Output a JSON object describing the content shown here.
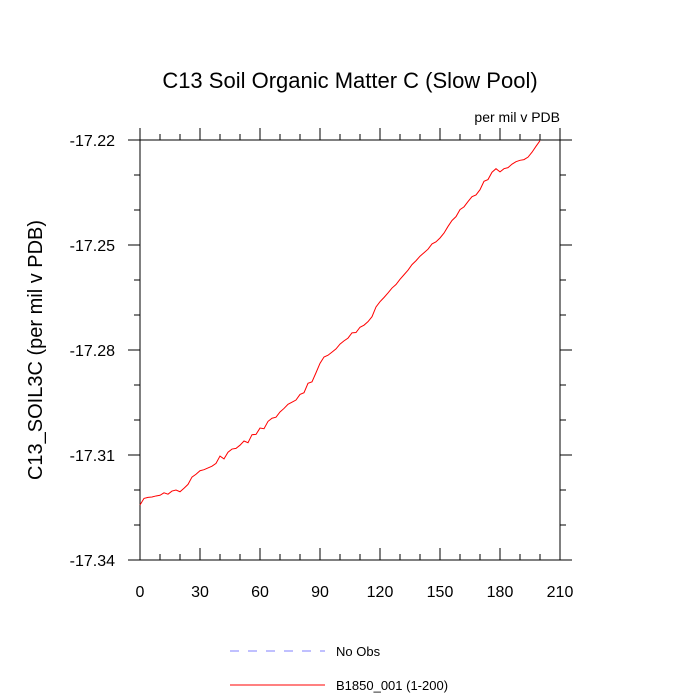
{
  "chart_data": {
    "type": "line",
    "title": "C13 Soil Organic Matter C (Slow Pool)",
    "units_label": "per mil v PDB",
    "xlabel": "",
    "ylabel": "C13_SOIL3C  (per mil v PDB)",
    "xlim": [
      0,
      210
    ],
    "ylim": [
      -17.34,
      -17.22
    ],
    "x_ticks": [
      0,
      30,
      60,
      90,
      120,
      150,
      180,
      210
    ],
    "x_tick_labels": [
      "0",
      "30",
      "60",
      "90",
      "120",
      "150",
      "180",
      "210"
    ],
    "y_ticks": [
      -17.22,
      -17.25,
      -17.28,
      -17.31,
      -17.34
    ],
    "y_tick_labels": [
      "-17.22",
      "-17.25",
      "-17.28",
      "-17.31",
      "-17.34"
    ],
    "series": [
      {
        "name": "B1850_001 (1-200)",
        "color": "#ff0000",
        "dash": "solid",
        "x": [
          0,
          2,
          4,
          6,
          8,
          10,
          12,
          14,
          16,
          18,
          20,
          22,
          24,
          26,
          28,
          30,
          32,
          34,
          36,
          38,
          40,
          42,
          44,
          46,
          48,
          50,
          52,
          54,
          56,
          58,
          60,
          62,
          64,
          66,
          68,
          70,
          72,
          74,
          76,
          78,
          80,
          82,
          84,
          86,
          88,
          90,
          92,
          94,
          96,
          98,
          100,
          102,
          104,
          106,
          108,
          110,
          112,
          114,
          116,
          118,
          120,
          122,
          124,
          126,
          128,
          130,
          132,
          134,
          136,
          138,
          140,
          142,
          144,
          146,
          148,
          150,
          152,
          154,
          156,
          158,
          160,
          162,
          164,
          166,
          168,
          170,
          172,
          174,
          176,
          178,
          180,
          182,
          184,
          186,
          188,
          190,
          192,
          194,
          196,
          198,
          200
        ],
        "values": [
          -17.3243,
          -17.3224,
          -17.3221,
          -17.322,
          -17.3217,
          -17.3215,
          -17.3208,
          -17.3212,
          -17.3203,
          -17.32,
          -17.3205,
          -17.3195,
          -17.3184,
          -17.3163,
          -17.3155,
          -17.3145,
          -17.3142,
          -17.3137,
          -17.3132,
          -17.3124,
          -17.3103,
          -17.3111,
          -17.3092,
          -17.3083,
          -17.3081,
          -17.3072,
          -17.306,
          -17.3065,
          -17.3042,
          -17.3041,
          -17.3023,
          -17.3025,
          -17.3004,
          -17.2995,
          -17.2992,
          -17.2977,
          -17.2967,
          -17.2955,
          -17.2949,
          -17.2943,
          -17.2927,
          -17.2922,
          -17.2895,
          -17.2891,
          -17.2865,
          -17.2838,
          -17.282,
          -17.2815,
          -17.2806,
          -17.2797,
          -17.2783,
          -17.2774,
          -17.2766,
          -17.2751,
          -17.275,
          -17.2735,
          -17.2729,
          -17.2719,
          -17.2705,
          -17.2677,
          -17.2662,
          -17.265,
          -17.2637,
          -17.2623,
          -17.2613,
          -17.2598,
          -17.2585,
          -17.2572,
          -17.2556,
          -17.2545,
          -17.2532,
          -17.2522,
          -17.2512,
          -17.2497,
          -17.2491,
          -17.248,
          -17.2466,
          -17.2447,
          -17.243,
          -17.2419,
          -17.2399,
          -17.2391,
          -17.2376,
          -17.2362,
          -17.2357,
          -17.2342,
          -17.2318,
          -17.2313,
          -17.2292,
          -17.2282,
          -17.2291,
          -17.2282,
          -17.2279,
          -17.2269,
          -17.2262,
          -17.2258,
          -17.2256,
          -17.2249,
          -17.2235,
          -17.2218,
          -17.2202
        ]
      },
      {
        "name": "No Obs",
        "color": "#8080ff",
        "dash": "dashed",
        "x": [],
        "values": []
      }
    ],
    "legend": {
      "placement": "bottom-center",
      "entries": [
        "No Obs",
        "B1850_001 (1-200)"
      ]
    },
    "grid": false
  }
}
